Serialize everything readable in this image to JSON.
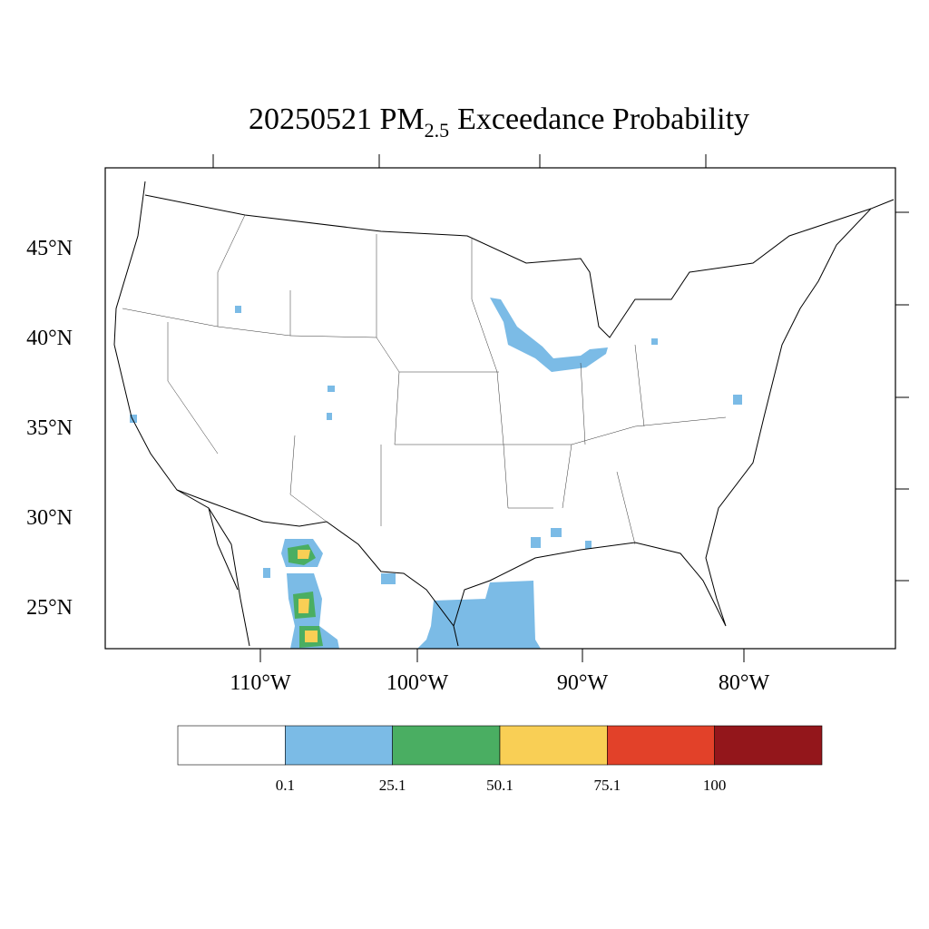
{
  "title": {
    "prefix": "20250521 PM",
    "subscript": "2.5",
    "suffix": "Exceedance Probability"
  },
  "lat_labels": [
    "45°N",
    "40°N",
    "35°N",
    "30°N",
    "25°N"
  ],
  "lon_labels": [
    "110°W",
    "100°W",
    "90°W",
    "80°W"
  ],
  "colorbar": {
    "labels": [
      "0.1",
      "25.1",
      "50.1",
      "75.1",
      "100"
    ],
    "colors": [
      "#ffffff",
      "#7bbbe6",
      "#4aae62",
      "#f9cf55",
      "#e24129",
      "#93161b"
    ]
  }
}
